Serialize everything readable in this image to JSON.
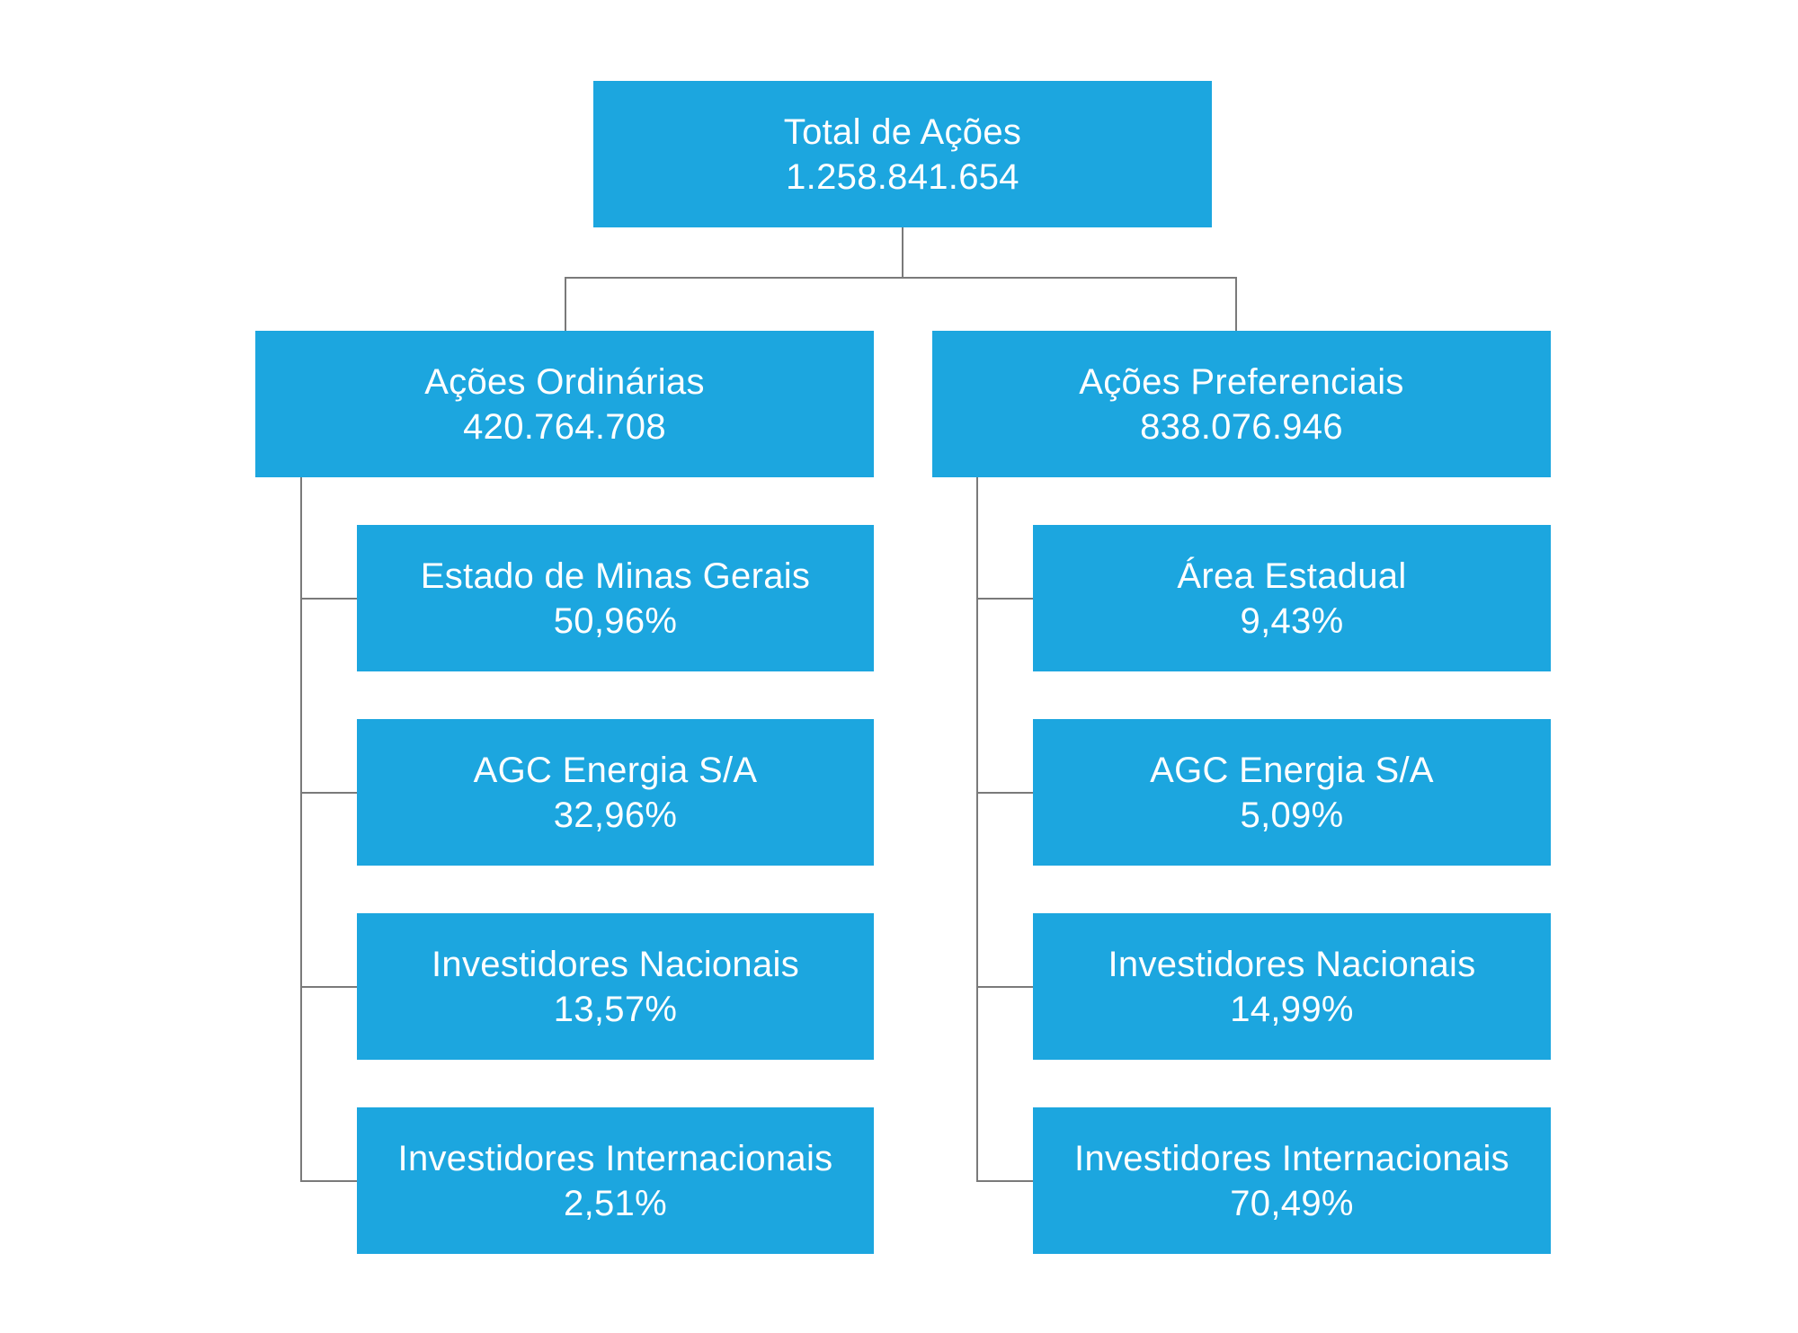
{
  "colors": {
    "box_fill": "#1ca6df",
    "box_text": "#ffffff",
    "connector": "#7a7a7a",
    "background": "#ffffff"
  },
  "root": {
    "label": "Total de Ações",
    "value": "1.258.841.654"
  },
  "ordinarias": {
    "label": "Ações Ordinárias",
    "value": "420.764.708",
    "children": [
      {
        "label": "Estado de Minas Gerais",
        "value": "50,96%"
      },
      {
        "label": "AGC Energia S/A",
        "value": "32,96%"
      },
      {
        "label": "Investidores Nacionais",
        "value": "13,57%"
      },
      {
        "label": "Investidores Internacionais",
        "value": "2,51%"
      }
    ]
  },
  "preferenciais": {
    "label": "Ações Preferenciais",
    "value": "838.076.946",
    "children": [
      {
        "label": "Área Estadual",
        "value": "9,43%"
      },
      {
        "label": "AGC Energia S/A",
        "value": "5,09%"
      },
      {
        "label": "Investidores Nacionais",
        "value": "14,99%"
      },
      {
        "label": "Investidores Internacionais",
        "value": "70,49%"
      }
    ]
  }
}
